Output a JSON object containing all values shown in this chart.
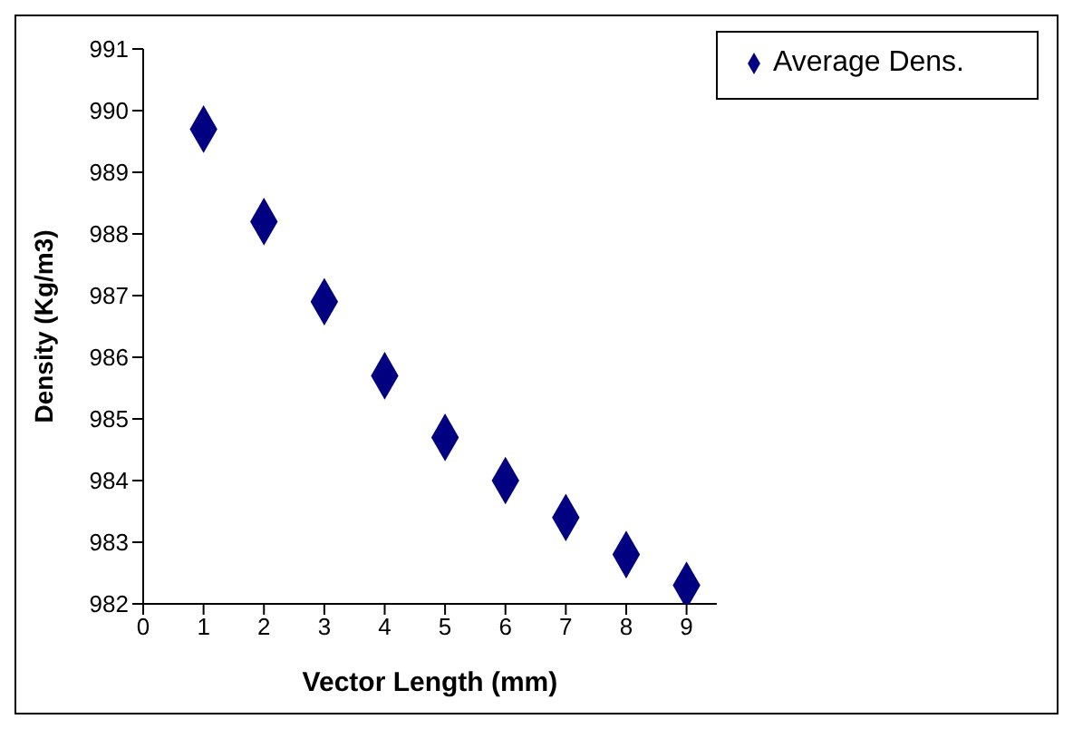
{
  "chart_data": {
    "type": "scatter",
    "xlabel": "Vector Length (mm)",
    "ylabel": "Density (Kg/m3)",
    "x": [
      1,
      2,
      3,
      4,
      5,
      6,
      7,
      8,
      9
    ],
    "series": [
      {
        "name": "Average Dens.",
        "color": "#000080",
        "values": [
          989.7,
          988.2,
          986.9,
          985.7,
          984.7,
          984.0,
          983.4,
          982.8,
          982.3
        ]
      }
    ],
    "xlim": [
      0,
      9.5
    ],
    "xticks": [
      0,
      1,
      2,
      3,
      4,
      5,
      6,
      7,
      8,
      9
    ],
    "ylim": [
      982,
      991
    ],
    "yticks": [
      982,
      983,
      984,
      985,
      986,
      987,
      988,
      989,
      990,
      991
    ],
    "grid": false,
    "legend": "top right",
    "marker": "diamond"
  }
}
